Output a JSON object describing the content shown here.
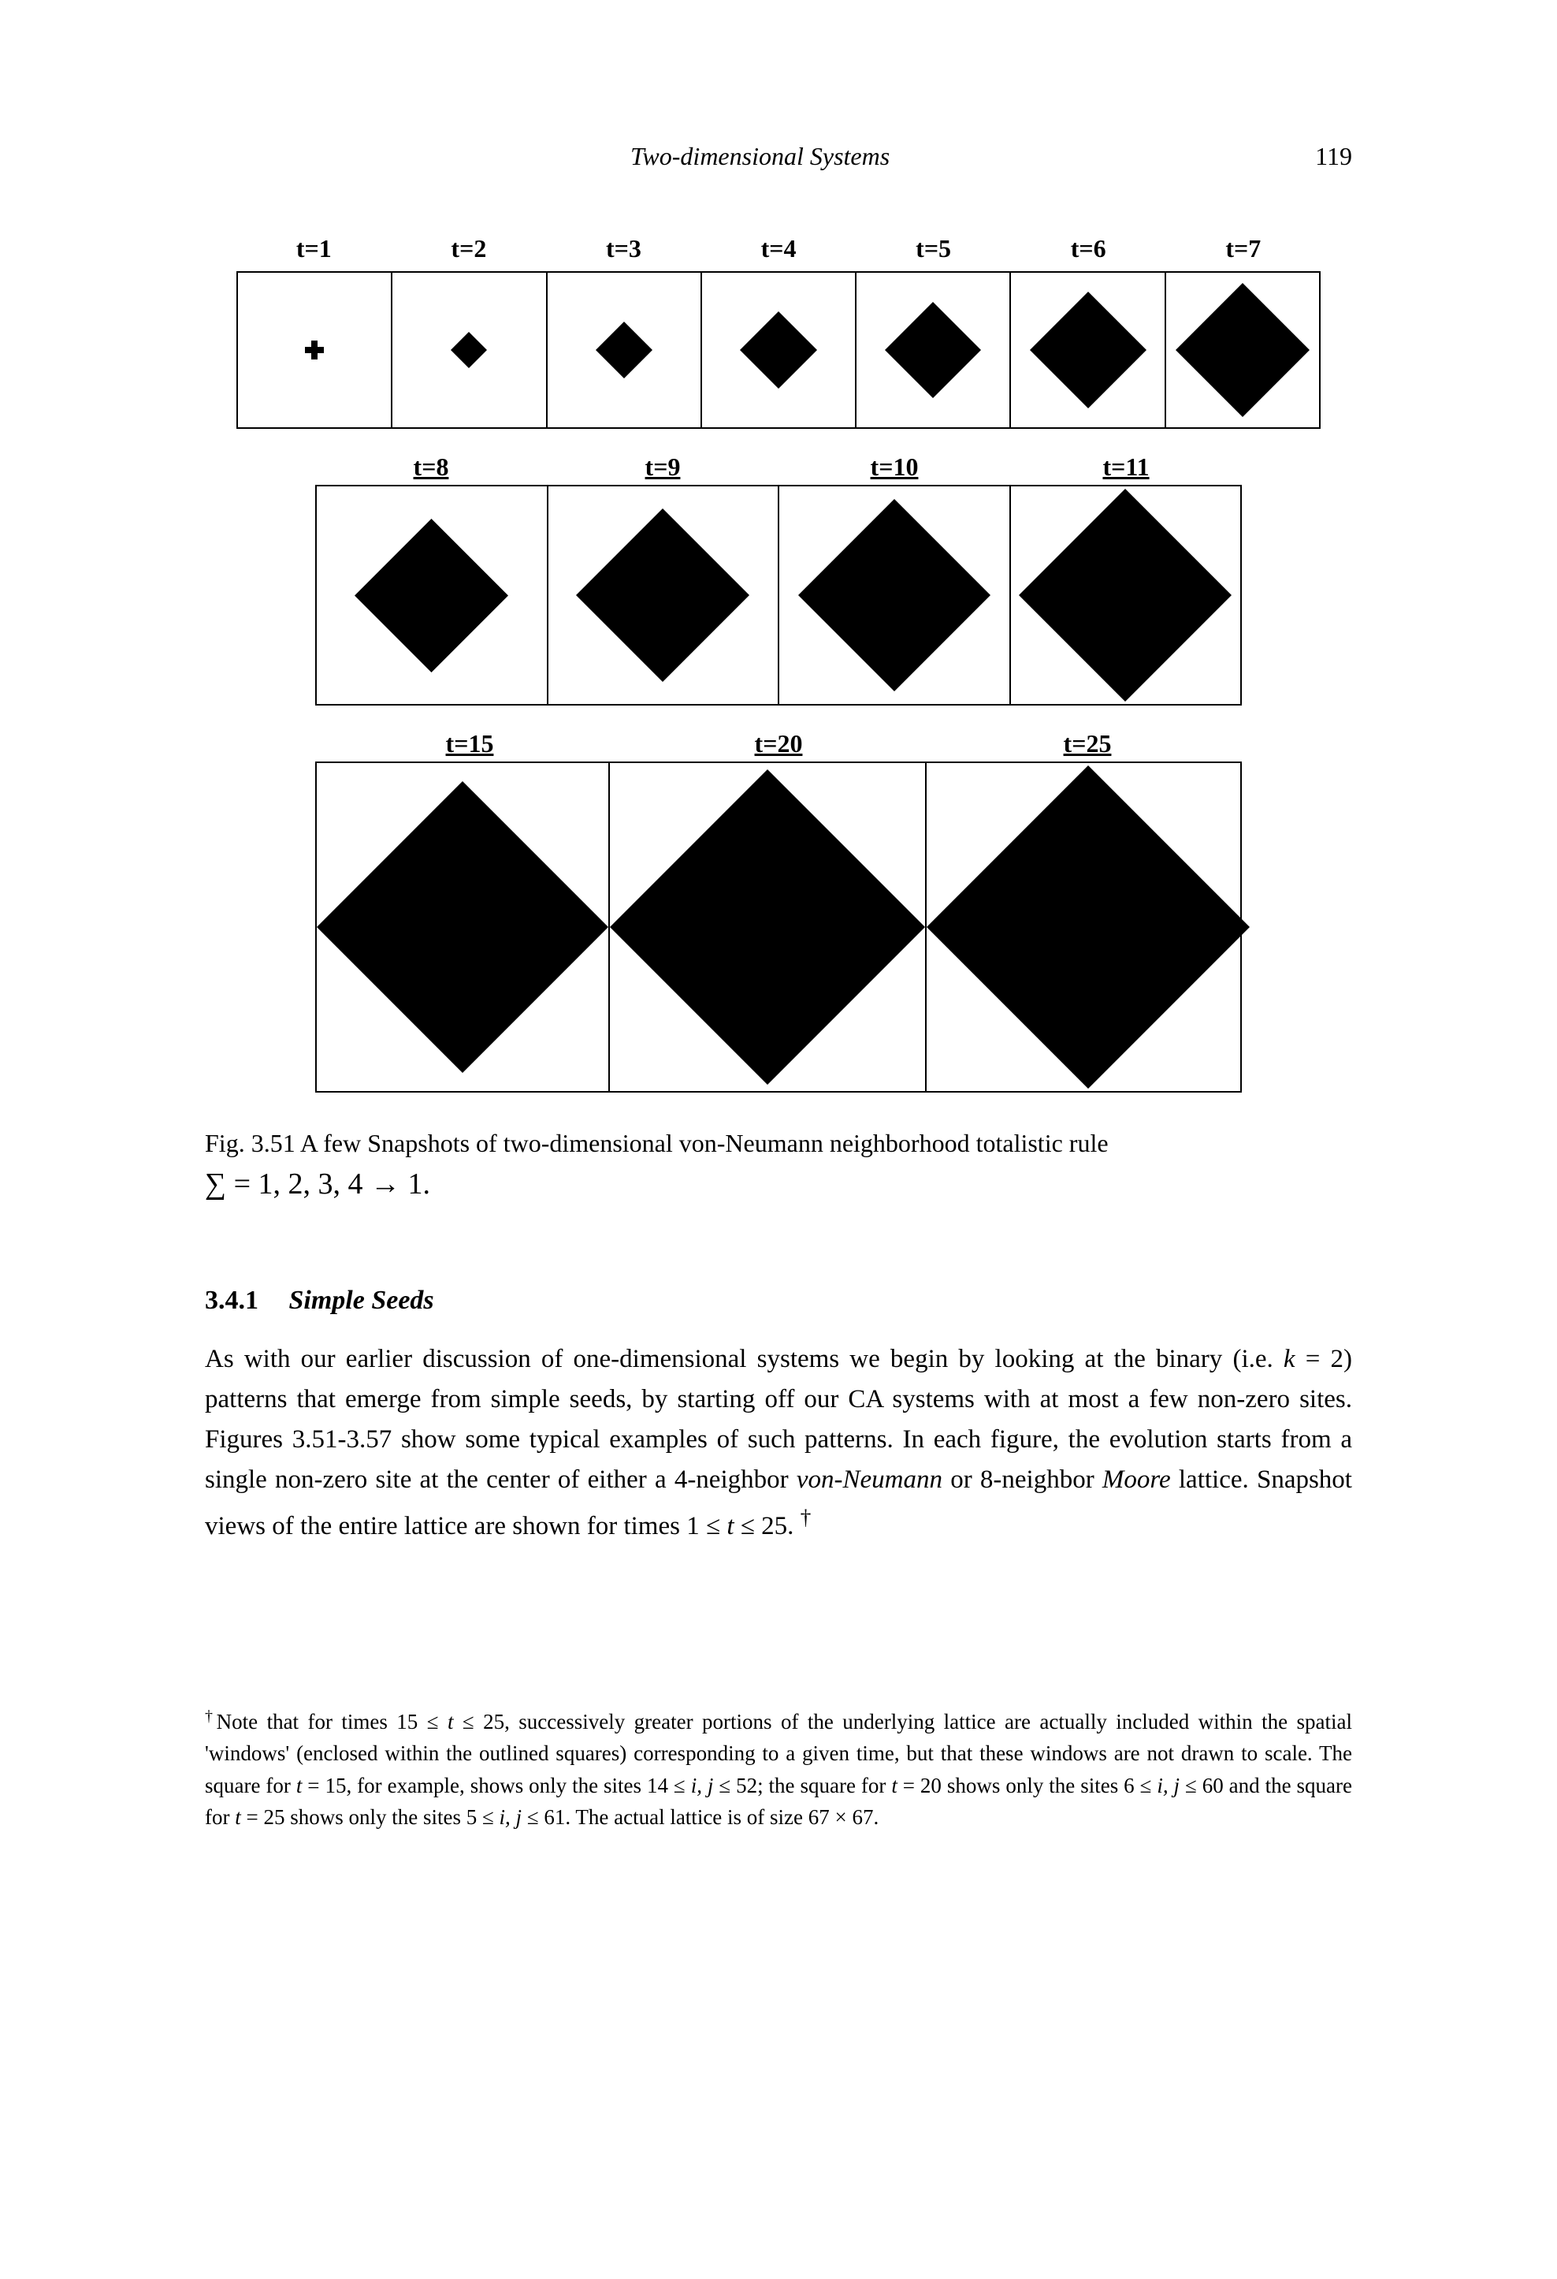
{
  "header": {
    "title": "Two-dimensional Systems",
    "page_number": "119"
  },
  "figure": {
    "row1_labels": [
      "t=1",
      "t=2",
      "t=3",
      "t=4",
      "t=5",
      "t=6",
      "t=7"
    ],
    "row1_sizes": [
      24,
      46,
      72,
      98,
      122,
      148,
      170
    ],
    "row2_labels": [
      "t=8",
      "t=9",
      "t=10",
      "t=11"
    ],
    "row2_sizes": [
      195,
      220,
      244,
      270
    ],
    "row3_labels": [
      "t=15",
      "t=20",
      "t=25"
    ],
    "row3_sizes": [
      370,
      400,
      410
    ],
    "fill_color": "#000000",
    "border_color": "#000000"
  },
  "caption": {
    "prefix": "Fig. 3.51 A few Snapshots of two-dimensional von-Neumann neighborhood totalistic rule",
    "formula": "∑ = 1, 2, 3, 4 → 1."
  },
  "section": {
    "number": "3.4.1",
    "title": "Simple Seeds"
  },
  "body": {
    "text": "As with our earlier discussion of one-dimensional systems we begin by looking at the binary (i.e. k = 2) patterns that emerge from simple seeds, by starting off our CA systems with at most a few non-zero sites. Figures 3.51-3.57 show some typical examples of such patterns. In each figure, the evolution starts from a single non-zero site at the center of either a 4-neighbor von-Neumann or 8-neighbor Moore lattice. Snapshot views of the entire lattice are shown for times 1 ≤ t ≤ 25. †"
  },
  "footnote": {
    "text": "†Note that for times 15 ≤ t ≤ 25, successively greater portions of the underlying lattice are actually included within the spatial 'windows' (enclosed within the outlined squares) corresponding to a given time, but that these windows are not drawn to scale. The square for t = 15, for example, shows only the sites 14 ≤ i, j ≤ 52; the square for t = 20 shows only the sites 6 ≤ i, j ≤ 60 and the square for t = 25 shows only the sites 5 ≤ i, j ≤ 61. The actual lattice is of size 67 × 67."
  }
}
